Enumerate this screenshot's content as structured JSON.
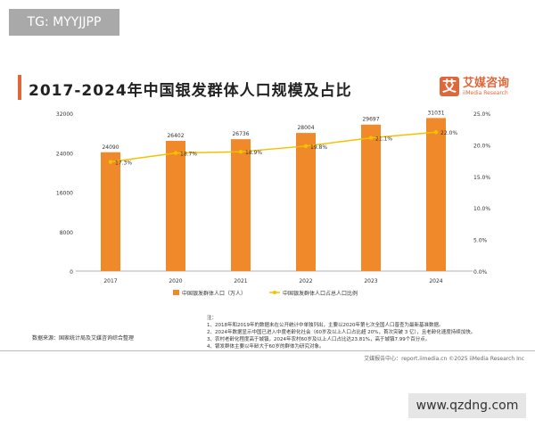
{
  "watermark_top": "TG: MYYJJPP",
  "watermark_bottom": "www.qzdng.com",
  "title": "2017-2024年中国银发群体人口规模及占比",
  "logo": {
    "mark": "艾",
    "name": "艾媒咨询",
    "sub": "iiMedia Research"
  },
  "chart_data": {
    "type": "bar+line",
    "title": "2017-2024年中国银发群体人口规模及占比",
    "categories": [
      "2017",
      "2020",
      "2021",
      "2022",
      "2023",
      "2024"
    ],
    "series": [
      {
        "name": "中国银发群体人口（万人）",
        "type": "bar",
        "axis": "left",
        "values": [
          24090,
          26402,
          26736,
          28004,
          29697,
          31031
        ],
        "labels": [
          "24090",
          "26402",
          "26736",
          "28004",
          "29697",
          "31031"
        ],
        "color": "#f0892a"
      },
      {
        "name": "中国银发群体人口占总人口比例",
        "type": "line",
        "axis": "right",
        "values": [
          17.3,
          18.7,
          18.9,
          19.8,
          21.1,
          22.0
        ],
        "labels": [
          "17.3%",
          "18.7%",
          "18.9%",
          "19.8%",
          "21.1%",
          "22.0%"
        ],
        "color": "#f2c200"
      }
    ],
    "ylim_left": [
      0,
      32000
    ],
    "yticks_left": [
      "0",
      "8000",
      "16000",
      "24000",
      "32000"
    ],
    "ylim_right": [
      0,
      25
    ],
    "yticks_right": [
      "0.0%",
      "5.0%",
      "10.0%",
      "15.0%",
      "20.0%",
      "25.0%"
    ],
    "grid": false,
    "legend": "bottom"
  },
  "source": "数据来源：国家统计局及艾媒咨询综合整理",
  "notes": [
    "注：",
    "1、2018年和2019年的数据未在公开统计中单独列出，主要以2020年第七次全国人口普查为最新基准数据。",
    "2、2024年数据显示中国已进入中度老龄化社会（60岁及以上人口占比超 20%，首次突破 3 亿），且老龄化速度持续加快。",
    "3、农村老龄化程度高于城镇，2024年农村60岁及以上人口占比达23.81%，高于城镇7.99个百分点。",
    "4、银发群体主要以年龄大于60岁的群体为研究对象。"
  ],
  "footer": "艾媒报告中心：report.iimedia.cn   ©2025   iiMedia Research Inc"
}
